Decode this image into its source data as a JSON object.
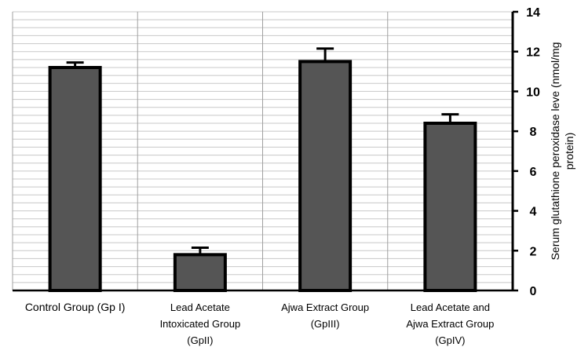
{
  "chart_data": {
    "type": "bar",
    "categories": [
      [
        "Control Group (Gp I)"
      ],
      [
        "Lead Acetate",
        "Intoxicated Group",
        "(GpII)"
      ],
      [
        "Ajwa Extract Group",
        "(GpIII)"
      ],
      [
        "Lead Acetate and",
        "Ajwa Extract Group",
        "(GpIV)"
      ]
    ],
    "values": [
      11.2,
      1.8,
      11.5,
      8.4
    ],
    "errors": [
      0.25,
      0.35,
      0.65,
      0.45
    ],
    "ylabel": [
      "Serum glutathione peroxidase leve (nmol/mg",
      "protein)"
    ],
    "ylim": [
      0,
      14
    ],
    "yticks": [
      0,
      2,
      4,
      6,
      8,
      10,
      12,
      14
    ],
    "grid": true,
    "axis_side": "right",
    "bar_color": "#555555"
  }
}
